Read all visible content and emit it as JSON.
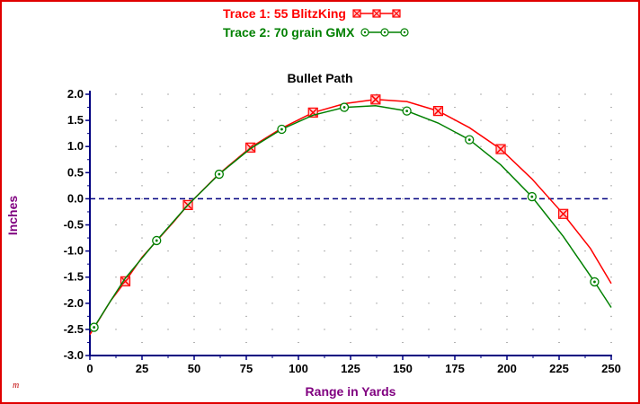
{
  "legend": {
    "trace1": "Trace 1:  55 BlitzKing",
    "trace2": "Trace 2:  70 grain GMX"
  },
  "signature": "m",
  "colors": {
    "trace1": "#ff0000",
    "trace2": "#008000",
    "axis": "#000080",
    "zero_line": "#000080",
    "ylabel": "#800080",
    "frame": "#e00000"
  },
  "chart_data": {
    "type": "line",
    "title": "Bullet Path",
    "xlabel": "Range in Yards",
    "ylabel": "Inches",
    "xlim": [
      0,
      250
    ],
    "ylim": [
      -3.0,
      2.0
    ],
    "x_ticks": [
      "0",
      "25",
      "50",
      "75",
      "100",
      "125",
      "150",
      "175",
      "200",
      "225",
      "250"
    ],
    "y_ticks": [
      "2.0",
      "1.5",
      "1.0",
      "0.5",
      "0.0",
      "-0.5",
      "-1.0",
      "-1.5",
      "-2.0",
      "-2.5",
      "-3.0"
    ],
    "grid": "dotted",
    "zero_line": true,
    "series": [
      {
        "name": "Trace 1:  55 BlitzKing",
        "marker": "square-x",
        "curve": [
          [
            0,
            -2.6
          ],
          [
            10,
            -1.95
          ],
          [
            17,
            -1.58
          ],
          [
            25,
            -1.12
          ],
          [
            40,
            -0.45
          ],
          [
            47,
            -0.12
          ],
          [
            62,
            0.48
          ],
          [
            77,
            0.98
          ],
          [
            92,
            1.35
          ],
          [
            107,
            1.65
          ],
          [
            122,
            1.82
          ],
          [
            137,
            1.9
          ],
          [
            152,
            1.86
          ],
          [
            167,
            1.68
          ],
          [
            182,
            1.36
          ],
          [
            197,
            0.95
          ],
          [
            212,
            0.38
          ],
          [
            227,
            -0.29
          ],
          [
            240,
            -0.95
          ],
          [
            250,
            -1.62
          ]
        ],
        "markers": [
          [
            17,
            -1.58
          ],
          [
            47,
            -0.12
          ],
          [
            77,
            0.98
          ],
          [
            107,
            1.65
          ],
          [
            137,
            1.9
          ],
          [
            167,
            1.68
          ],
          [
            197,
            0.95
          ],
          [
            227,
            -0.29
          ]
        ]
      },
      {
        "name": "Trace 2:  70 grain GMX",
        "marker": "circle-dot",
        "curve": [
          [
            2,
            -2.46
          ],
          [
            10,
            -1.95
          ],
          [
            17,
            -1.52
          ],
          [
            32,
            -0.8
          ],
          [
            47,
            -0.12
          ],
          [
            62,
            0.47
          ],
          [
            77,
            0.96
          ],
          [
            92,
            1.33
          ],
          [
            107,
            1.6
          ],
          [
            122,
            1.75
          ],
          [
            137,
            1.78
          ],
          [
            152,
            1.68
          ],
          [
            167,
            1.45
          ],
          [
            182,
            1.13
          ],
          [
            197,
            0.65
          ],
          [
            212,
            0.04
          ],
          [
            227,
            -0.72
          ],
          [
            242,
            -1.59
          ],
          [
            250,
            -2.08
          ]
        ],
        "markers": [
          [
            2,
            -2.46
          ],
          [
            32,
            -0.8
          ],
          [
            62,
            0.47
          ],
          [
            92,
            1.33
          ],
          [
            122,
            1.75
          ],
          [
            152,
            1.68
          ],
          [
            182,
            1.13
          ],
          [
            212,
            0.04
          ],
          [
            242,
            -1.59
          ]
        ]
      }
    ]
  }
}
